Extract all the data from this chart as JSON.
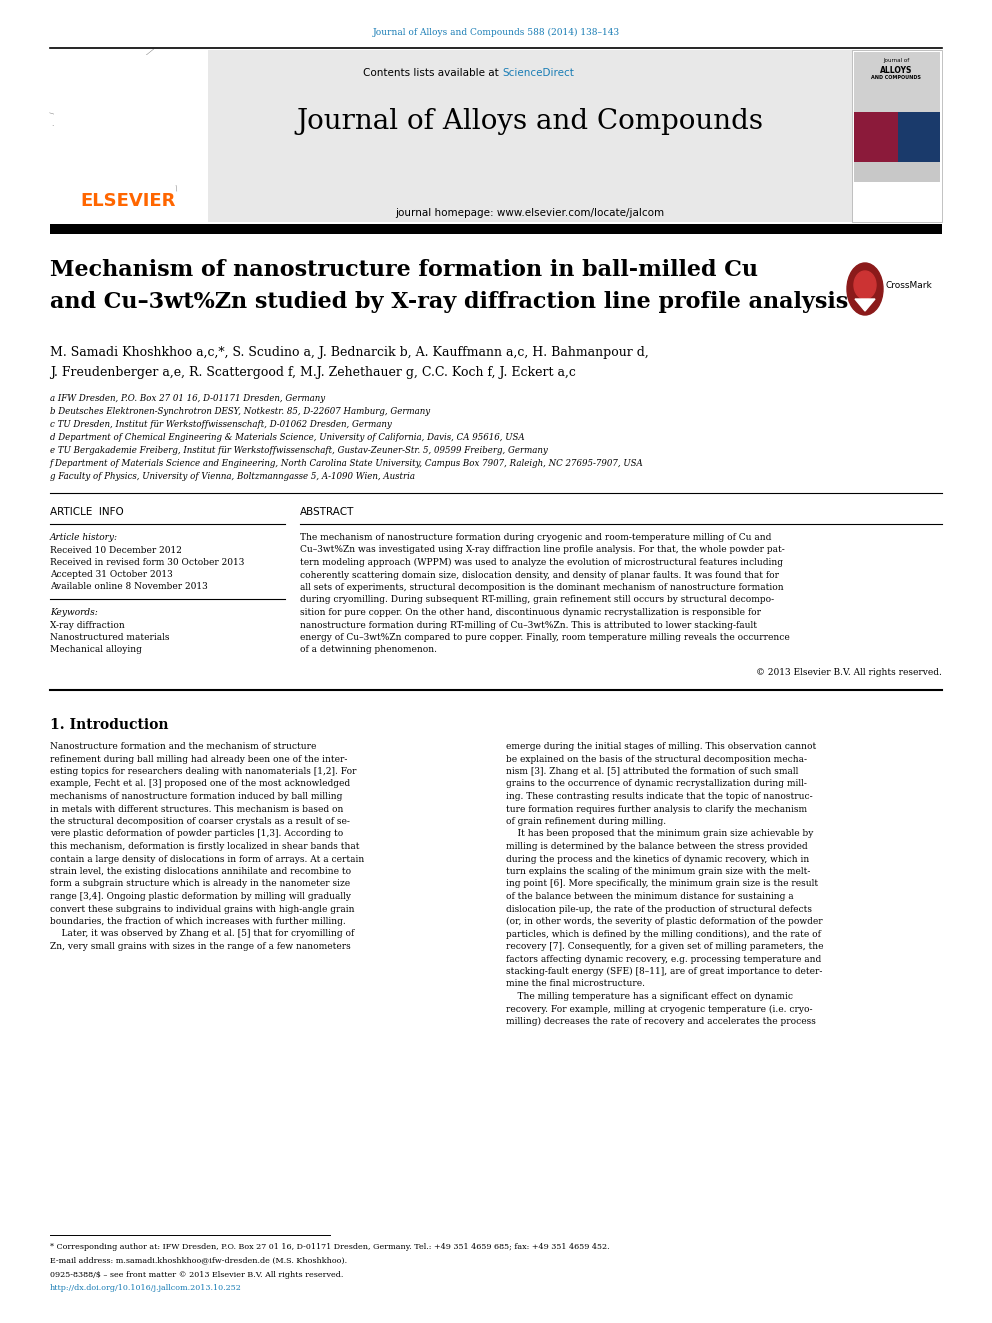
{
  "page_width": 9.92,
  "page_height": 13.23,
  "dpi": 100,
  "bg_color": "#ffffff",
  "journal_ref_color": "#1a7db5",
  "journal_ref": "Journal of Alloys and Compounds 588 (2014) 138–143",
  "header_bg": "#e8e8e8",
  "sciencedirect_color": "#1a7db5",
  "journal_name": "Journal of Alloys and Compounds",
  "homepage_text": "journal homepage: www.elsevier.com/locate/jalcom",
  "elsevier_color": "#ff6600",
  "elsevier_text": "ELSEVIER",
  "title_line1": "Mechanism of nanostructure formation in ball-milled Cu",
  "title_line2": "and Cu–3wt%Zn studied by X-ray diffraction line profile analysis",
  "authors_line1": "M. Samadi Khoshkhoo a,c,*, S. Scudino a, J. Bednarcik b, A. Kauffmann a,c, H. Bahmanpour d,",
  "authors_line2": "J. Freudenberger a,e, R. Scattergood f, M.J. Zehethauer g, C.C. Koch f, J. Eckert a,c",
  "affil_a": "a IFW Dresden, P.O. Box 27 01 16, D-01171 Dresden, Germany",
  "affil_b": "b Deutsches Elektronen-Synchrotron DESY, Notkestr. 85, D-22607 Hamburg, Germany",
  "affil_c": "c TU Dresden, Institut für Werkstoffwissenschaft, D-01062 Dresden, Germany",
  "affil_d": "d Department of Chemical Engineering & Materials Science, University of California, Davis, CA 95616, USA",
  "affil_e": "e TU Bergakademie Freiberg, Institut für Werkstoffwissenschaft, Gustav-Zeuner-Str. 5, 09599 Freiberg, Germany",
  "affil_f": "f Department of Materials Science and Engineering, North Carolina State University, Campus Box 7907, Raleigh, NC 27695-7907, USA",
  "affil_g": "g Faculty of Physics, University of Vienna, Boltzmanngasse 5, A-1090 Wien, Austria",
  "article_info_title": "ARTICLE  INFO",
  "abstract_title": "ABSTRACT",
  "article_history_label": "Article history:",
  "received1": "Received 10 December 2012",
  "received2": "Received in revised form 30 October 2013",
  "accepted": "Accepted 31 October 2013",
  "available": "Available online 8 November 2013",
  "keywords_label": "Keywords:",
  "keyword1": "X-ray diffraction",
  "keyword2": "Nanostructured materials",
  "keyword3": "Mechanical alloying",
  "copyright": "© 2013 Elsevier B.V. All rights reserved.",
  "intro_title": "1. Introduction",
  "footnote1": "* Corresponding author at: IFW Dresden, P.O. Box 27 01 16, D-01171 Dresden, Germany. Tel.: +49 351 4659 685; fax: +49 351 4659 452.",
  "footnote2": "E-mail address: m.samadi.khoshkhoo@ifw-dresden.de (M.S. Khoshkhoo).",
  "footnote3": "0925-8388/$ – see front matter © 2013 Elsevier B.V. All rights reserved.",
  "footnote4": "http://dx.doi.org/10.1016/j.jallcom.2013.10.252",
  "footnote4_color": "#1a7db5",
  "abs_lines": [
    "The mechanism of nanostructure formation during cryogenic and room-temperature milling of Cu and",
    "Cu–3wt%Zn was investigated using X-ray diffraction line profile analysis. For that, the whole powder pat-",
    "tern modeling approach (WPPM) was used to analyze the evolution of microstructural features including",
    "coherently scattering domain size, dislocation density, and density of planar faults. It was found that for",
    "all sets of experiments, structural decomposition is the dominant mechanism of nanostructure formation",
    "during cryomilling. During subsequent RT-milling, grain refinement still occurs by structural decompo-",
    "sition for pure copper. On the other hand, discontinuous dynamic recrystallization is responsible for",
    "nanostructure formation during RT-milling of Cu–3wt%Zn. This is attributed to lower stacking-fault",
    "energy of Cu–3wt%Zn compared to pure copper. Finally, room temperature milling reveals the occurrence",
    "of a detwinning phenomenon."
  ],
  "intro_col1_lines": [
    "Nanostructure formation and the mechanism of structure",
    "refinement during ball milling had already been one of the inter-",
    "esting topics for researchers dealing with nanomaterials [1,2]. For",
    "example, Fecht et al. [3] proposed one of the most acknowledged",
    "mechanisms of nanostructure formation induced by ball milling",
    "in metals with different structures. This mechanism is based on",
    "the structural decomposition of coarser crystals as a result of se-",
    "vere plastic deformation of powder particles [1,3]. According to",
    "this mechanism, deformation is firstly localized in shear bands that",
    "contain a large density of dislocations in form of arrays. At a certain",
    "strain level, the existing dislocations annihilate and recombine to",
    "form a subgrain structure which is already in the nanometer size",
    "range [3,4]. Ongoing plastic deformation by milling will gradually",
    "convert these subgrains to individual grains with high-angle grain",
    "boundaries, the fraction of which increases with further milling.",
    "    Later, it was observed by Zhang et al. [5] that for cryomilling of",
    "Zn, very small grains with sizes in the range of a few nanometers"
  ],
  "intro_col2_lines": [
    "emerge during the initial stages of milling. This observation cannot",
    "be explained on the basis of the structural decomposition mecha-",
    "nism [3]. Zhang et al. [5] attributed the formation of such small",
    "grains to the occurrence of dynamic recrystallization during mill-",
    "ing. These contrasting results indicate that the topic of nanostruc-",
    "ture formation requires further analysis to clarify the mechanism",
    "of grain refinement during milling.",
    "    It has been proposed that the minimum grain size achievable by",
    "milling is determined by the balance between the stress provided",
    "during the process and the kinetics of dynamic recovery, which in",
    "turn explains the scaling of the minimum grain size with the melt-",
    "ing point [6]. More specifically, the minimum grain size is the result",
    "of the balance between the minimum distance for sustaining a",
    "dislocation pile-up, the rate of the production of structural defects",
    "(or, in other words, the severity of plastic deformation of the powder",
    "particles, which is defined by the milling conditions), and the rate of",
    "recovery [7]. Consequently, for a given set of milling parameters, the",
    "factors affecting dynamic recovery, e.g. processing temperature and",
    "stacking-fault energy (SFE) [8–11], are of great importance to deter-",
    "mine the final microstructure.",
    "    The milling temperature has a significant effect on dynamic",
    "recovery. For example, milling at cryogenic temperature (i.e. cryo-",
    "milling) decreases the rate of recovery and accelerates the process"
  ]
}
